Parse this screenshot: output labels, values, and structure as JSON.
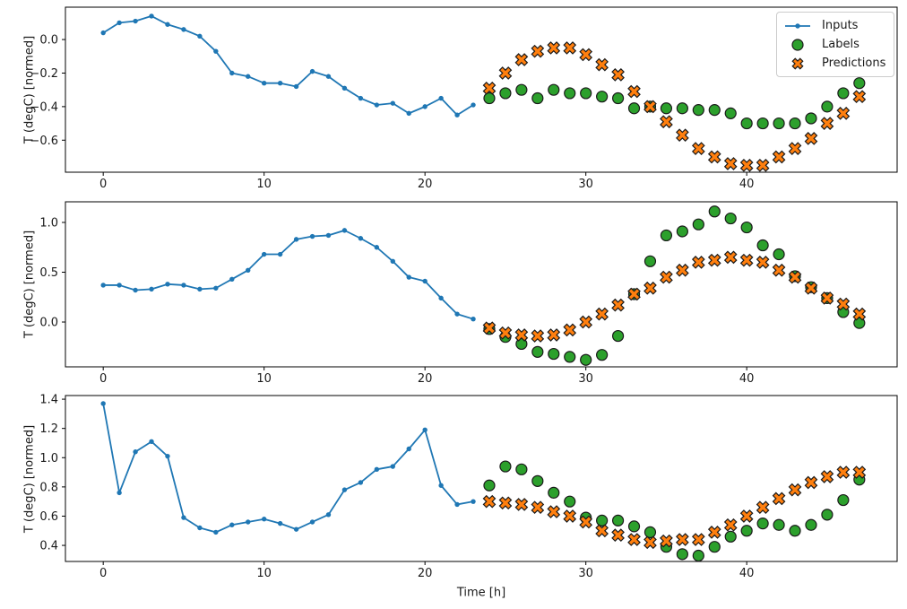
{
  "figure": {
    "background": "#ffffff",
    "axis_color": "#000000",
    "tick_label_color": "#1a1a1a",
    "legend": {
      "border_color": "#cccccc",
      "background": "#ffffff",
      "position": "upper right of first subplot"
    }
  },
  "chart_data": [
    {
      "type": "line",
      "subtype": "line+scatter",
      "title": "",
      "xlabel": "",
      "ylabel": "T (degC) [normed]",
      "xlim": [
        -2.35,
        49.35
      ],
      "ylim": [
        -0.791,
        0.193
      ],
      "xticks": [
        0,
        10,
        20,
        30,
        40
      ],
      "xtick_labels": [
        "0",
        "10",
        "20",
        "30",
        "40"
      ],
      "yticks": [
        0.0,
        -0.2,
        -0.4,
        -0.6
      ],
      "ytick_labels": [
        "0.0",
        "−0.2",
        "−0.4",
        "−0.6"
      ],
      "grid": false,
      "legend_visible": true,
      "series": [
        {
          "name": "Inputs",
          "marker": "line-dot",
          "color": "#1f77b4",
          "x": [
            0,
            1,
            2,
            3,
            4,
            5,
            6,
            7,
            8,
            9,
            10,
            11,
            12,
            13,
            14,
            15,
            16,
            17,
            18,
            19,
            20,
            21,
            22,
            23
          ],
          "y": [
            0.04,
            0.1,
            0.11,
            0.14,
            0.09,
            0.06,
            0.02,
            -0.07,
            -0.2,
            -0.22,
            -0.26,
            -0.26,
            -0.28,
            -0.19,
            -0.22,
            -0.29,
            -0.35,
            -0.39,
            -0.38,
            -0.44,
            -0.4,
            -0.35,
            -0.45,
            -0.39
          ]
        },
        {
          "name": "Labels",
          "marker": "circle",
          "color": "#2ca02c",
          "edge_color": "#1a1a1a",
          "x": [
            24,
            25,
            26,
            27,
            28,
            29,
            30,
            31,
            32,
            33,
            34,
            35,
            36,
            37,
            38,
            39,
            40,
            41,
            42,
            43,
            44,
            45,
            46,
            47
          ],
          "y": [
            -0.35,
            -0.32,
            -0.3,
            -0.35,
            -0.3,
            -0.32,
            -0.32,
            -0.34,
            -0.35,
            -0.41,
            -0.4,
            -0.41,
            -0.41,
            -0.42,
            -0.42,
            -0.44,
            -0.5,
            -0.5,
            -0.5,
            -0.5,
            -0.47,
            -0.4,
            -0.32,
            -0.26
          ]
        },
        {
          "name": "Predictions",
          "marker": "X",
          "color": "#ff7f0e",
          "edge_color": "#1a1a1a",
          "x": [
            24,
            25,
            26,
            27,
            28,
            29,
            30,
            31,
            32,
            33,
            34,
            35,
            36,
            37,
            38,
            39,
            40,
            41,
            42,
            43,
            44,
            45,
            46,
            47
          ],
          "y": [
            -0.29,
            -0.2,
            -0.12,
            -0.07,
            -0.05,
            -0.05,
            -0.09,
            -0.15,
            -0.21,
            -0.31,
            -0.4,
            -0.49,
            -0.57,
            -0.65,
            -0.7,
            -0.74,
            -0.75,
            -0.75,
            -0.7,
            -0.65,
            -0.59,
            -0.5,
            -0.44,
            -0.34
          ]
        }
      ]
    },
    {
      "type": "line",
      "subtype": "line+scatter",
      "title": "",
      "xlabel": "",
      "ylabel": "T (degC) [normed]",
      "xlim": [
        -2.35,
        49.35
      ],
      "ylim": [
        -0.45,
        1.207
      ],
      "xticks": [
        0,
        10,
        20,
        30,
        40
      ],
      "xtick_labels": [
        "0",
        "10",
        "20",
        "30",
        "40"
      ],
      "yticks": [
        1.0,
        0.5,
        0.0
      ],
      "ytick_labels": [
        "1.0",
        "0.5",
        "0.0"
      ],
      "grid": false,
      "legend_visible": false,
      "series": [
        {
          "name": "Inputs",
          "marker": "line-dot",
          "color": "#1f77b4",
          "x": [
            0,
            1,
            2,
            3,
            4,
            5,
            6,
            7,
            8,
            9,
            10,
            11,
            12,
            13,
            14,
            15,
            16,
            17,
            18,
            19,
            20,
            21,
            22,
            23
          ],
          "y": [
            0.37,
            0.37,
            0.32,
            0.33,
            0.38,
            0.37,
            0.33,
            0.34,
            0.43,
            0.52,
            0.68,
            0.68,
            0.83,
            0.86,
            0.87,
            0.92,
            0.84,
            0.75,
            0.61,
            0.45,
            0.41,
            0.24,
            0.08,
            0.03
          ]
        },
        {
          "name": "Labels",
          "marker": "circle",
          "color": "#2ca02c",
          "edge_color": "#1a1a1a",
          "x": [
            24,
            25,
            26,
            27,
            28,
            29,
            30,
            31,
            32,
            33,
            34,
            35,
            36,
            37,
            38,
            39,
            40,
            41,
            42,
            43,
            44,
            45,
            46,
            47
          ],
          "y": [
            -0.07,
            -0.15,
            -0.22,
            -0.3,
            -0.32,
            -0.35,
            -0.38,
            -0.33,
            -0.14,
            0.28,
            0.61,
            0.87,
            0.91,
            0.98,
            1.11,
            1.04,
            0.95,
            0.77,
            0.68,
            0.46,
            0.35,
            0.24,
            0.1,
            -0.01
          ]
        },
        {
          "name": "Predictions",
          "marker": "X",
          "color": "#ff7f0e",
          "edge_color": "#1a1a1a",
          "x": [
            24,
            25,
            26,
            27,
            28,
            29,
            30,
            31,
            32,
            33,
            34,
            35,
            36,
            37,
            38,
            39,
            40,
            41,
            42,
            43,
            44,
            45,
            46,
            47
          ],
          "y": [
            -0.06,
            -0.11,
            -0.13,
            -0.14,
            -0.13,
            -0.08,
            0.0,
            0.08,
            0.17,
            0.28,
            0.34,
            0.45,
            0.52,
            0.6,
            0.62,
            0.65,
            0.62,
            0.6,
            0.52,
            0.45,
            0.34,
            0.24,
            0.18,
            0.08
          ]
        }
      ]
    },
    {
      "type": "line",
      "subtype": "line+scatter",
      "title": "",
      "xlabel": "Time [h]",
      "ylabel": "T (degC) [normed]",
      "xlim": [
        -2.35,
        49.35
      ],
      "ylim": [
        0.29,
        1.425
      ],
      "xticks": [
        0,
        10,
        20,
        30,
        40
      ],
      "xtick_labels": [
        "0",
        "10",
        "20",
        "30",
        "40"
      ],
      "yticks": [
        1.4,
        1.2,
        1.0,
        0.8,
        0.6,
        0.4
      ],
      "ytick_labels": [
        "1.4",
        "1.2",
        "1.0",
        "0.8",
        "0.6",
        "0.4"
      ],
      "grid": false,
      "legend_visible": false,
      "series": [
        {
          "name": "Inputs",
          "marker": "line-dot",
          "color": "#1f77b4",
          "x": [
            0,
            1,
            2,
            3,
            4,
            5,
            6,
            7,
            8,
            9,
            10,
            11,
            12,
            13,
            14,
            15,
            16,
            17,
            18,
            19,
            20,
            21,
            22,
            23
          ],
          "y": [
            1.37,
            0.76,
            1.04,
            1.11,
            1.01,
            0.59,
            0.52,
            0.49,
            0.54,
            0.56,
            0.58,
            0.55,
            0.51,
            0.56,
            0.61,
            0.78,
            0.83,
            0.92,
            0.94,
            1.06,
            1.19,
            0.81,
            0.68,
            0.7
          ]
        },
        {
          "name": "Labels",
          "marker": "circle",
          "color": "#2ca02c",
          "edge_color": "#1a1a1a",
          "x": [
            24,
            25,
            26,
            27,
            28,
            29,
            30,
            31,
            32,
            33,
            34,
            35,
            36,
            37,
            38,
            39,
            40,
            41,
            42,
            43,
            44,
            45,
            46,
            47
          ],
          "y": [
            0.81,
            0.94,
            0.92,
            0.84,
            0.76,
            0.7,
            0.59,
            0.57,
            0.57,
            0.53,
            0.49,
            0.39,
            0.34,
            0.33,
            0.39,
            0.46,
            0.5,
            0.55,
            0.54,
            0.5,
            0.54,
            0.61,
            0.71,
            0.85
          ]
        },
        {
          "name": "Predictions",
          "marker": "X",
          "color": "#ff7f0e",
          "edge_color": "#1a1a1a",
          "x": [
            24,
            25,
            26,
            27,
            28,
            29,
            30,
            31,
            32,
            33,
            34,
            35,
            36,
            37,
            38,
            39,
            40,
            41,
            42,
            43,
            44,
            45,
            46,
            47
          ],
          "y": [
            0.7,
            0.69,
            0.68,
            0.66,
            0.63,
            0.6,
            0.56,
            0.5,
            0.47,
            0.44,
            0.42,
            0.43,
            0.44,
            0.44,
            0.49,
            0.54,
            0.6,
            0.66,
            0.72,
            0.78,
            0.83,
            0.87,
            0.9,
            0.9
          ]
        }
      ]
    }
  ]
}
